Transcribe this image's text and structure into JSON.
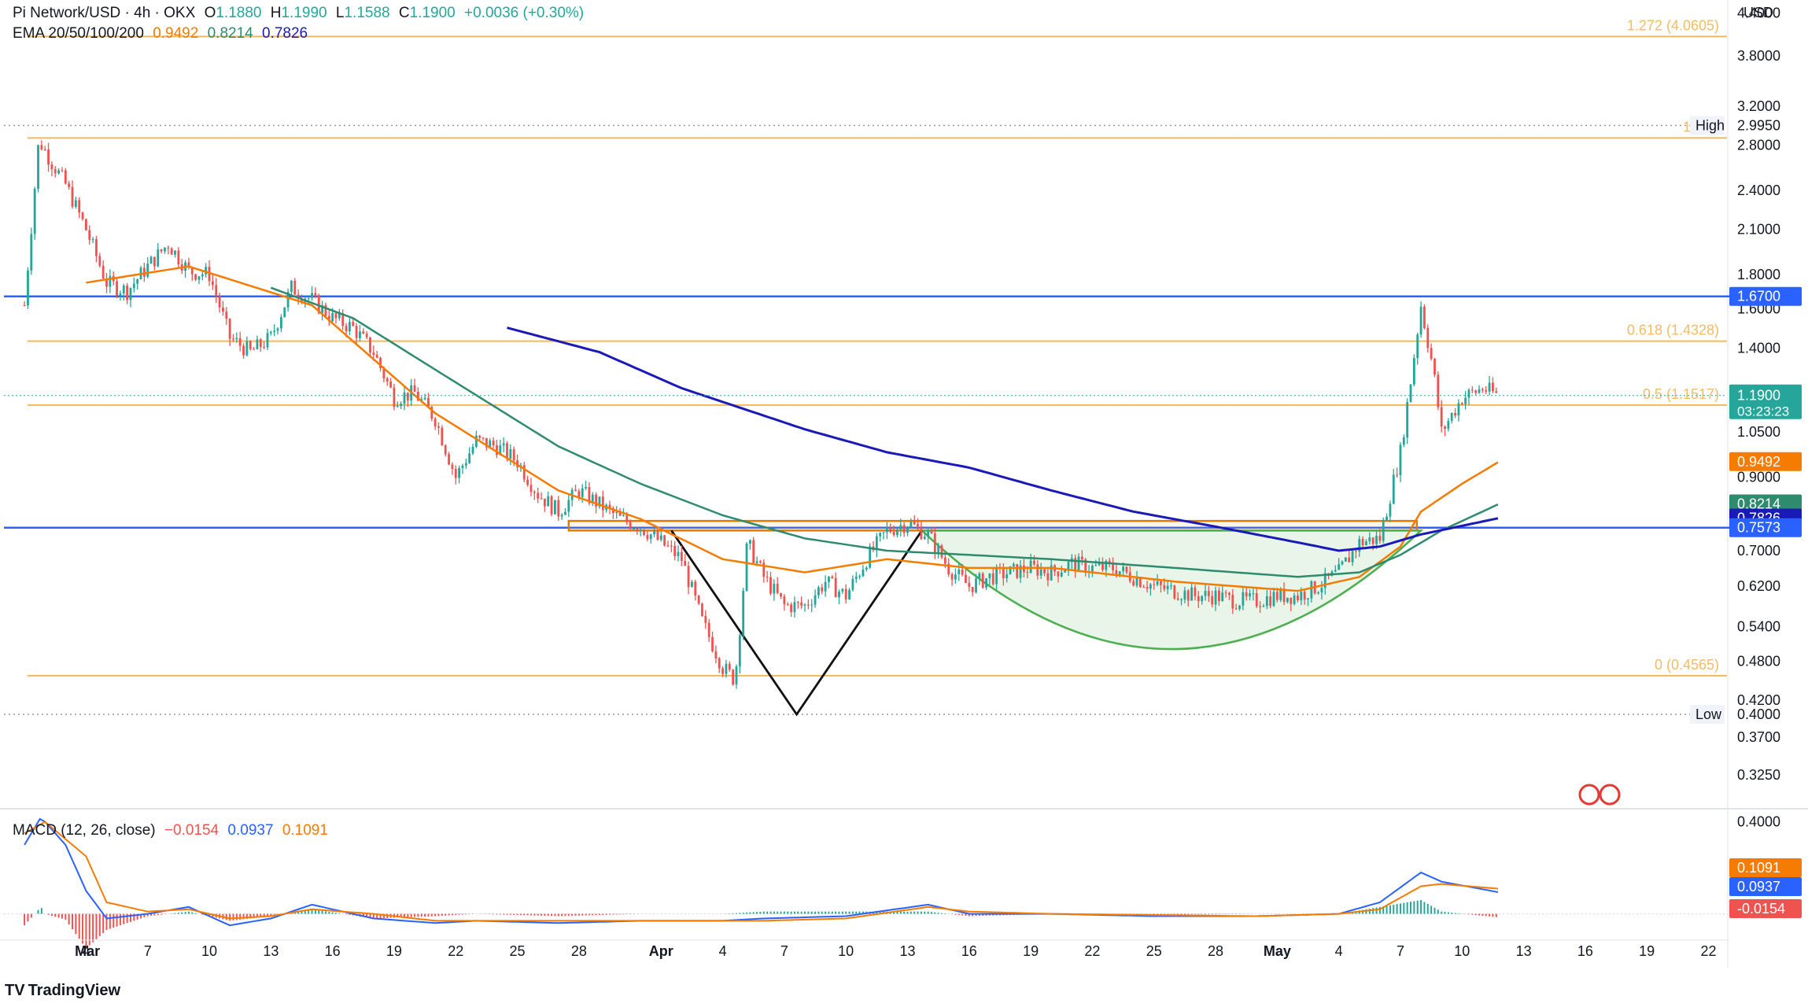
{
  "header": {
    "symbol": "Pi Network/USD · 4h · OKX",
    "open_label": "O",
    "open": "1.1880",
    "high_label": "H",
    "high": "1.1990",
    "low_label": "L",
    "low": "1.1588",
    "close_label": "C",
    "close": "1.1900",
    "change": "+0.0036 (+0.30%)"
  },
  "ema_legend": {
    "label": "EMA 20/50/100/200",
    "ema20": "0.9492",
    "ema50": "0.8214",
    "ema100": "0.7826"
  },
  "macd_legend": {
    "label": "MACD (12, 26, close)",
    "hist": "−0.0154",
    "macd": "0.0937",
    "signal": "0.1091"
  },
  "branding": {
    "name": "TradingView",
    "logo": "tradingview-logo"
  },
  "colors": {
    "up": "#26a69a",
    "down": "#ef5350",
    "ema20": "#f57c00",
    "ema50": "#2e8b6e",
    "ema200": "#1a1ab8",
    "blue_line": "#2962ff",
    "fib": "#f5b04a",
    "gold_box": "#e07b00",
    "macd_line": "#2962ff",
    "signal_line": "#f57c00",
    "current_price": "#26a69a"
  },
  "chart_data": {
    "type": "candlestick",
    "title": "Pi Network/USD · 4h · OKX",
    "y_unit": "USD",
    "y_scale": "log",
    "ylim": [
      0.3,
      4.6
    ],
    "y_ticks": [
      "4.4000",
      "3.8000",
      "3.2000",
      "2.8000",
      "2.4000",
      "2.1000",
      "1.8000",
      "1.6000",
      "1.4000",
      "1.0500",
      "0.9000",
      "0.7000",
      "0.6200",
      "0.5400",
      "0.4800",
      "0.4200",
      "0.3700",
      "0.3250"
    ],
    "x_labels": [
      "Mar",
      "4",
      "7",
      "10",
      "13",
      "16",
      "19",
      "22",
      "25",
      "28",
      "Apr",
      "4",
      "7",
      "10",
      "13",
      "16",
      "19",
      "22",
      "25",
      "28",
      "May",
      "4",
      "7",
      "10",
      "13",
      "16",
      "19",
      "22"
    ],
    "x_range_days": [
      -1.0,
      82.9
    ],
    "price_path": [
      [
        0,
        1.62
      ],
      [
        0.7,
        2.85
      ],
      [
        1.3,
        2.65
      ],
      [
        2,
        2.45
      ],
      [
        3,
        2.1
      ],
      [
        4,
        1.75
      ],
      [
        5,
        1.7
      ],
      [
        6,
        1.85
      ],
      [
        7,
        2.0
      ],
      [
        8,
        1.82
      ],
      [
        9,
        1.8
      ],
      [
        10,
        1.45
      ],
      [
        11,
        1.38
      ],
      [
        12,
        1.45
      ],
      [
        13,
        1.72
      ],
      [
        14,
        1.65
      ],
      [
        15,
        1.55
      ],
      [
        16,
        1.5
      ],
      [
        17,
        1.38
      ],
      [
        18,
        1.18
      ],
      [
        19,
        1.2
      ],
      [
        20,
        1.1
      ],
      [
        21,
        0.9
      ],
      [
        22,
        1.02
      ],
      [
        23,
        1.0
      ],
      [
        24,
        0.95
      ],
      [
        25,
        0.85
      ],
      [
        26,
        0.8
      ],
      [
        27,
        0.86
      ],
      [
        28,
        0.82
      ],
      [
        29,
        0.78
      ],
      [
        30,
        0.76
      ],
      [
        31,
        0.72
      ],
      [
        32,
        0.68
      ],
      [
        33,
        0.55
      ],
      [
        34,
        0.47
      ],
      [
        34.6,
        0.45
      ],
      [
        35.2,
        0.72
      ],
      [
        36,
        0.64
      ],
      [
        37,
        0.58
      ],
      [
        38,
        0.58
      ],
      [
        39,
        0.63
      ],
      [
        40,
        0.6
      ],
      [
        41,
        0.68
      ],
      [
        42,
        0.75
      ],
      [
        43,
        0.77
      ],
      [
        44,
        0.74
      ],
      [
        45,
        0.66
      ],
      [
        46,
        0.62
      ],
      [
        47,
        0.64
      ],
      [
        48,
        0.65
      ],
      [
        49,
        0.66
      ],
      [
        50,
        0.65
      ],
      [
        51,
        0.67
      ],
      [
        52,
        0.66
      ],
      [
        53,
        0.66
      ],
      [
        54,
        0.64
      ],
      [
        55,
        0.62
      ],
      [
        56,
        0.61
      ],
      [
        57,
        0.6
      ],
      [
        58,
        0.6
      ],
      [
        59,
        0.59
      ],
      [
        60,
        0.59
      ],
      [
        61,
        0.6
      ],
      [
        62,
        0.6
      ],
      [
        63,
        0.62
      ],
      [
        64,
        0.65
      ],
      [
        65,
        0.72
      ],
      [
        66,
        0.73
      ],
      [
        67,
        0.98
      ],
      [
        67.5,
        1.25
      ],
      [
        68,
        1.62
      ],
      [
        68.6,
        1.3
      ],
      [
        69,
        1.05
      ],
      [
        70,
        1.18
      ],
      [
        71,
        1.22
      ],
      [
        71.8,
        1.19
      ]
    ],
    "ema_series": [
      {
        "name": "EMA 20",
        "last": 0.9492,
        "values": [
          [
            3,
            1.75
          ],
          [
            8,
            1.85
          ],
          [
            14,
            1.62
          ],
          [
            20,
            1.12
          ],
          [
            26,
            0.86
          ],
          [
            30,
            0.78
          ],
          [
            34,
            0.68
          ],
          [
            38,
            0.65
          ],
          [
            42,
            0.68
          ],
          [
            46,
            0.66
          ],
          [
            50,
            0.66
          ],
          [
            56,
            0.63
          ],
          [
            62,
            0.61
          ],
          [
            65,
            0.64
          ],
          [
            67,
            0.71
          ],
          [
            68,
            0.8
          ],
          [
            70,
            0.88
          ],
          [
            71.8,
            0.9492
          ]
        ]
      },
      {
        "name": "EMA 50",
        "last": 0.8214,
        "values": [
          [
            12,
            1.72
          ],
          [
            16,
            1.55
          ],
          [
            20,
            1.3
          ],
          [
            26,
            1.0
          ],
          [
            30,
            0.88
          ],
          [
            34,
            0.79
          ],
          [
            38,
            0.73
          ],
          [
            42,
            0.7
          ],
          [
            46,
            0.69
          ],
          [
            50,
            0.68
          ],
          [
            56,
            0.66
          ],
          [
            62,
            0.64
          ],
          [
            65,
            0.65
          ],
          [
            67,
            0.69
          ],
          [
            69,
            0.75
          ],
          [
            71.8,
            0.8214
          ]
        ]
      },
      {
        "name": "EMA 200",
        "last": 0.7826,
        "values": [
          [
            23.5,
            1.5
          ],
          [
            28,
            1.38
          ],
          [
            32,
            1.22
          ],
          [
            38,
            1.06
          ],
          [
            42,
            0.98
          ],
          [
            46,
            0.93
          ],
          [
            50,
            0.86
          ],
          [
            54,
            0.8
          ],
          [
            58,
            0.76
          ],
          [
            62,
            0.72
          ],
          [
            64,
            0.7
          ],
          [
            66,
            0.71
          ],
          [
            68,
            0.74
          ],
          [
            71.8,
            0.7826
          ]
        ]
      }
    ],
    "horizontal_levels": [
      {
        "label": "High",
        "value": 2.995,
        "style": "dotted"
      },
      {
        "label": "1.6700",
        "value": 1.67,
        "color": "blue"
      },
      {
        "label": "0.7573",
        "value": 0.7573,
        "color": "blue"
      },
      {
        "label": "Low",
        "value": 0.4,
        "style": "dotted"
      }
    ],
    "fib_levels": [
      {
        "label": "1.272 (4.0605)",
        "value": 4.0605
      },
      {
        "label": "1 (2.9",
        "value": 2.87
      },
      {
        "label": "0.618 (1.4328)",
        "value": 1.4328
      },
      {
        "label": "0.5 (1.1517)",
        "value": 1.1517
      },
      {
        "label": "0 (0.4565)",
        "value": 0.4565
      }
    ],
    "price_axis_labels": [
      {
        "text": "High",
        "value": 2.995
      },
      {
        "text": "2.9950",
        "value": 2.995
      },
      {
        "text": "1.6700",
        "value": 1.67,
        "bg": "#2962ff"
      },
      {
        "text": "1.1900",
        "value": 1.19,
        "bg": "#26a69a"
      },
      {
        "text": "03:23:23",
        "value": 1.19,
        "bg": "#26a69a"
      },
      {
        "text": "0.9492",
        "value": 0.9492,
        "bg": "#f57c00"
      },
      {
        "text": "0.8214",
        "value": 0.8214,
        "bg": "#2e8b6e"
      },
      {
        "text": "0.7826",
        "value": 0.7826,
        "bg": "#1a1ab8"
      },
      {
        "text": "0.7573",
        "value": 0.7573,
        "bg": "#2962ff"
      },
      {
        "text": "Low",
        "value": 0.4
      },
      {
        "text": "0.4000",
        "value": 0.4
      }
    ],
    "drawings": {
      "resistance_box": {
        "from_day": 26.5,
        "to_day": 67.8,
        "top": 0.775,
        "bottom": 0.75
      },
      "v_pattern": [
        [
          31.5,
          0.75
        ],
        [
          37.6,
          0.4
        ],
        [
          43.7,
          0.75
        ]
      ],
      "cup_arc": {
        "from_day": 43.7,
        "to_day": 68.0,
        "rim": 0.75,
        "bottom": 0.5
      }
    },
    "macd": {
      "type": "line",
      "ylim": [
        -0.08,
        0.45
      ],
      "y_ticks": [
        "0.4000"
      ],
      "macd_line": [
        [
          0,
          0.3
        ],
        [
          0.8,
          0.42
        ],
        [
          2,
          0.3
        ],
        [
          3,
          0.1
        ],
        [
          4,
          -0.02
        ],
        [
          6,
          0.0
        ],
        [
          8,
          0.03
        ],
        [
          10,
          -0.05
        ],
        [
          12,
          -0.02
        ],
        [
          14,
          0.04
        ],
        [
          17,
          -0.02
        ],
        [
          20,
          -0.04
        ],
        [
          22,
          -0.03
        ],
        [
          26,
          -0.04
        ],
        [
          30,
          -0.03
        ],
        [
          34,
          -0.03
        ],
        [
          36,
          -0.02
        ],
        [
          40,
          -0.01
        ],
        [
          44,
          0.04
        ],
        [
          46,
          0.0
        ],
        [
          50,
          0.0
        ],
        [
          55,
          -0.01
        ],
        [
          60,
          -0.01
        ],
        [
          64,
          0.0
        ],
        [
          66,
          0.05
        ],
        [
          68,
          0.18
        ],
        [
          69,
          0.14
        ],
        [
          71.8,
          0.0937
        ]
      ],
      "signal_line": [
        [
          0,
          0.35
        ],
        [
          1,
          0.4
        ],
        [
          3,
          0.25
        ],
        [
          4,
          0.05
        ],
        [
          6,
          0.01
        ],
        [
          8,
          0.02
        ],
        [
          10,
          -0.02
        ],
        [
          12,
          -0.01
        ],
        [
          14,
          0.02
        ],
        [
          17,
          0.0
        ],
        [
          20,
          -0.03
        ],
        [
          26,
          -0.03
        ],
        [
          30,
          -0.03
        ],
        [
          34,
          -0.03
        ],
        [
          36,
          -0.03
        ],
        [
          40,
          -0.02
        ],
        [
          44,
          0.03
        ],
        [
          46,
          0.01
        ],
        [
          50,
          0.0
        ],
        [
          60,
          -0.01
        ],
        [
          64,
          0.0
        ],
        [
          66,
          0.02
        ],
        [
          68,
          0.12
        ],
        [
          69,
          0.13
        ],
        [
          71.8,
          0.1091
        ]
      ],
      "last_labels": [
        {
          "text": "0.1091",
          "value": 0.1091,
          "bg": "#f57c00"
        },
        {
          "text": "0.0937",
          "value": 0.0937,
          "bg": "#2962ff"
        },
        {
          "text": "-0.0154",
          "value": -0.0154,
          "bg": "#ef5350"
        }
      ]
    }
  }
}
